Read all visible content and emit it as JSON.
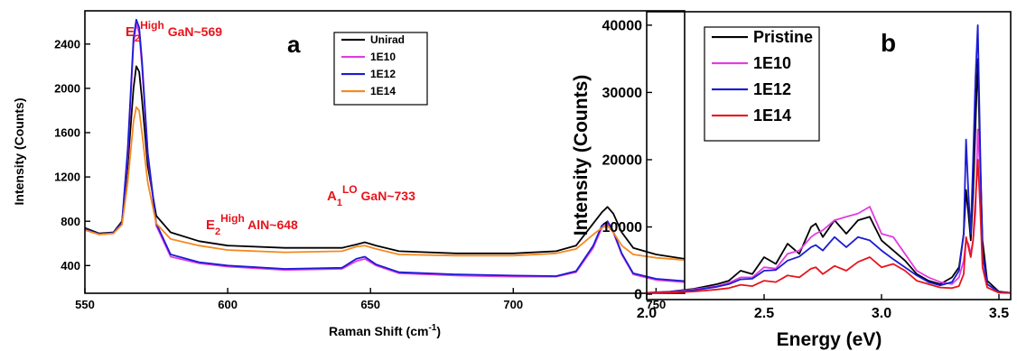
{
  "chart_data": [
    {
      "type": "line",
      "panel_label": "a",
      "xlabel": "Raman Shift (cm",
      "xlabel_sup": "-1",
      "xlabel_end": ")",
      "ylabel": "Intensity (Counts)",
      "xlim": [
        550,
        760
      ],
      "ylim": [
        150,
        2700
      ],
      "xticks": [
        550,
        600,
        650,
        700,
        750
      ],
      "yticks": [
        400,
        800,
        1200,
        1600,
        2000,
        2400
      ],
      "grid": false,
      "legend_position": "top-right",
      "annotation_color": "#e8141b",
      "annotations": [
        {
          "base": "E",
          "sub": "2",
          "sup": "High",
          "rest": " GaN~569"
        },
        {
          "base": "E",
          "sub": "2",
          "sup": "High",
          "rest": " AlN~648"
        },
        {
          "base": "A",
          "sub": "1",
          "sup": "LO",
          "rest": " GaN~733"
        }
      ],
      "series": [
        {
          "name": "Unirad",
          "color": "#000000",
          "x": [
            550,
            555,
            560,
            563,
            565,
            567,
            568,
            569,
            570,
            572,
            575,
            580,
            590,
            600,
            620,
            640,
            645,
            648,
            652,
            660,
            680,
            700,
            715,
            722,
            728,
            731,
            733,
            735,
            738,
            742,
            750,
            760
          ],
          "y": [
            740,
            690,
            700,
            800,
            1300,
            2000,
            2200,
            2150,
            1900,
            1300,
            850,
            700,
            620,
            580,
            560,
            560,
            590,
            610,
            580,
            530,
            510,
            510,
            530,
            580,
            780,
            880,
            930,
            870,
            700,
            560,
            500,
            460
          ]
        },
        {
          "name": "1E10",
          "color": "#e23ce0",
          "x": [
            550,
            555,
            560,
            563,
            565,
            567,
            568,
            569,
            570,
            572,
            575,
            580,
            590,
            600,
            620,
            640,
            645,
            648,
            652,
            660,
            680,
            700,
            715,
            722,
            728,
            731,
            733,
            735,
            738,
            742,
            750,
            760
          ],
          "y": [
            730,
            680,
            690,
            780,
            1400,
            2400,
            2580,
            2500,
            2200,
            1400,
            760,
            480,
            420,
            390,
            360,
            370,
            440,
            460,
            400,
            330,
            310,
            300,
            300,
            340,
            560,
            740,
            780,
            700,
            500,
            320,
            270,
            250
          ]
        },
        {
          "name": "1E12",
          "color": "#1b1bd4",
          "x": [
            550,
            555,
            560,
            563,
            565,
            567,
            568,
            569,
            570,
            572,
            575,
            580,
            590,
            600,
            620,
            640,
            645,
            648,
            652,
            660,
            680,
            700,
            715,
            722,
            728,
            731,
            733,
            735,
            738,
            742,
            750,
            760
          ],
          "y": [
            730,
            685,
            695,
            790,
            1450,
            2450,
            2620,
            2550,
            2250,
            1420,
            780,
            500,
            430,
            400,
            370,
            380,
            460,
            480,
            410,
            340,
            320,
            310,
            305,
            350,
            580,
            760,
            800,
            710,
            510,
            330,
            280,
            260
          ]
        },
        {
          "name": "1E14",
          "color": "#f5891f",
          "x": [
            550,
            555,
            560,
            563,
            565,
            567,
            568,
            569,
            570,
            572,
            575,
            580,
            590,
            600,
            620,
            640,
            645,
            648,
            652,
            660,
            680,
            700,
            715,
            722,
            728,
            731,
            733,
            735,
            738,
            742,
            750,
            760
          ],
          "y": [
            720,
            680,
            690,
            770,
            1150,
            1700,
            1830,
            1800,
            1600,
            1150,
            780,
            640,
            580,
            540,
            520,
            530,
            570,
            580,
            550,
            500,
            490,
            490,
            510,
            550,
            680,
            740,
            760,
            700,
            580,
            500,
            470,
            450
          ]
        }
      ]
    },
    {
      "type": "line",
      "panel_label": "b",
      "xlabel": "Energy (eV)",
      "ylabel": "Intensity (Counts)",
      "xlim": [
        2.0,
        3.55
      ],
      "ylim": [
        -800,
        42000
      ],
      "xticks": [
        2.0,
        2.5,
        3.0,
        3.5
      ],
      "xtick_labels": [
        "2.0",
        "2.5",
        "3.0",
        "3.5"
      ],
      "yticks": [
        0,
        10000,
        20000,
        30000,
        40000
      ],
      "grid": false,
      "legend_position": "top-left",
      "series": [
        {
          "name": "Pristine",
          "color": "#000000",
          "x": [
            2.0,
            2.1,
            2.2,
            2.3,
            2.35,
            2.4,
            2.45,
            2.5,
            2.55,
            2.6,
            2.65,
            2.7,
            2.72,
            2.75,
            2.8,
            2.85,
            2.9,
            2.95,
            3.0,
            3.05,
            3.1,
            3.15,
            3.2,
            3.25,
            3.3,
            3.33,
            3.35,
            3.36,
            3.37,
            3.38,
            3.39,
            3.4,
            3.41,
            3.42,
            3.43,
            3.45,
            3.5,
            3.55
          ],
          "y": [
            200,
            400,
            800,
            1500,
            2000,
            3500,
            3000,
            5500,
            4500,
            7500,
            6000,
            10000,
            10500,
            8500,
            11000,
            9000,
            11000,
            11500,
            8000,
            6500,
            5000,
            3000,
            2000,
            1500,
            2500,
            4000,
            9000,
            15500,
            12000,
            8000,
            15000,
            25000,
            35000,
            20000,
            8000,
            2000,
            400,
            200
          ]
        },
        {
          "name": "1E10",
          "color": "#e23ce0",
          "x": [
            2.0,
            2.1,
            2.2,
            2.3,
            2.35,
            2.4,
            2.45,
            2.5,
            2.55,
            2.6,
            2.65,
            2.7,
            2.72,
            2.75,
            2.8,
            2.85,
            2.9,
            2.95,
            3.0,
            3.05,
            3.1,
            3.15,
            3.2,
            3.25,
            3.3,
            3.33,
            3.35,
            3.36,
            3.37,
            3.38,
            3.39,
            3.4,
            3.41,
            3.42,
            3.43,
            3.45,
            3.5,
            3.55
          ],
          "y": [
            200,
            350,
            700,
            1200,
            1700,
            2500,
            2500,
            4000,
            3800,
            6000,
            6500,
            8500,
            9000,
            9500,
            11000,
            11500,
            12000,
            13000,
            9000,
            8500,
            6000,
            3500,
            2500,
            1800,
            1500,
            2500,
            5000,
            8000,
            7500,
            6000,
            8000,
            12000,
            24500,
            18000,
            6000,
            1500,
            300,
            200
          ]
        },
        {
          "name": "1E12",
          "color": "#1b1bd4",
          "x": [
            2.0,
            2.1,
            2.2,
            2.3,
            2.35,
            2.4,
            2.45,
            2.5,
            2.55,
            2.6,
            2.65,
            2.7,
            2.72,
            2.75,
            2.8,
            2.85,
            2.9,
            2.95,
            3.0,
            3.05,
            3.1,
            3.15,
            3.2,
            3.25,
            3.3,
            3.33,
            3.35,
            3.36,
            3.37,
            3.38,
            3.39,
            3.4,
            3.41,
            3.42,
            3.43,
            3.45,
            3.5,
            3.55
          ],
          "y": [
            200,
            300,
            600,
            1100,
            1500,
            2200,
            2300,
            3500,
            3600,
            5000,
            5600,
            7000,
            7300,
            6500,
            8500,
            7000,
            8500,
            8000,
            6500,
            5200,
            4000,
            2800,
            1800,
            1300,
            1800,
            3500,
            9000,
            23000,
            15000,
            9000,
            20000,
            32000,
            40000,
            22000,
            6000,
            1500,
            300,
            200
          ]
        },
        {
          "name": "1E14",
          "color": "#e8141b",
          "x": [
            2.0,
            2.1,
            2.2,
            2.3,
            2.35,
            2.4,
            2.45,
            2.5,
            2.55,
            2.6,
            2.65,
            2.7,
            2.72,
            2.75,
            2.8,
            2.85,
            2.9,
            2.95,
            3.0,
            3.05,
            3.1,
            3.15,
            3.2,
            3.25,
            3.3,
            3.33,
            3.35,
            3.36,
            3.37,
            3.38,
            3.39,
            3.4,
            3.41,
            3.42,
            3.43,
            3.45,
            3.5,
            3.55
          ],
          "y": [
            150,
            250,
            400,
            700,
            900,
            1400,
            1200,
            2000,
            1800,
            2800,
            2500,
            3800,
            4000,
            3000,
            4200,
            3500,
            4800,
            5500,
            4000,
            4500,
            3500,
            2000,
            1500,
            1000,
            900,
            1200,
            3000,
            8500,
            7000,
            5500,
            8000,
            14000,
            20000,
            13000,
            4000,
            1000,
            200,
            150
          ]
        }
      ]
    }
  ]
}
